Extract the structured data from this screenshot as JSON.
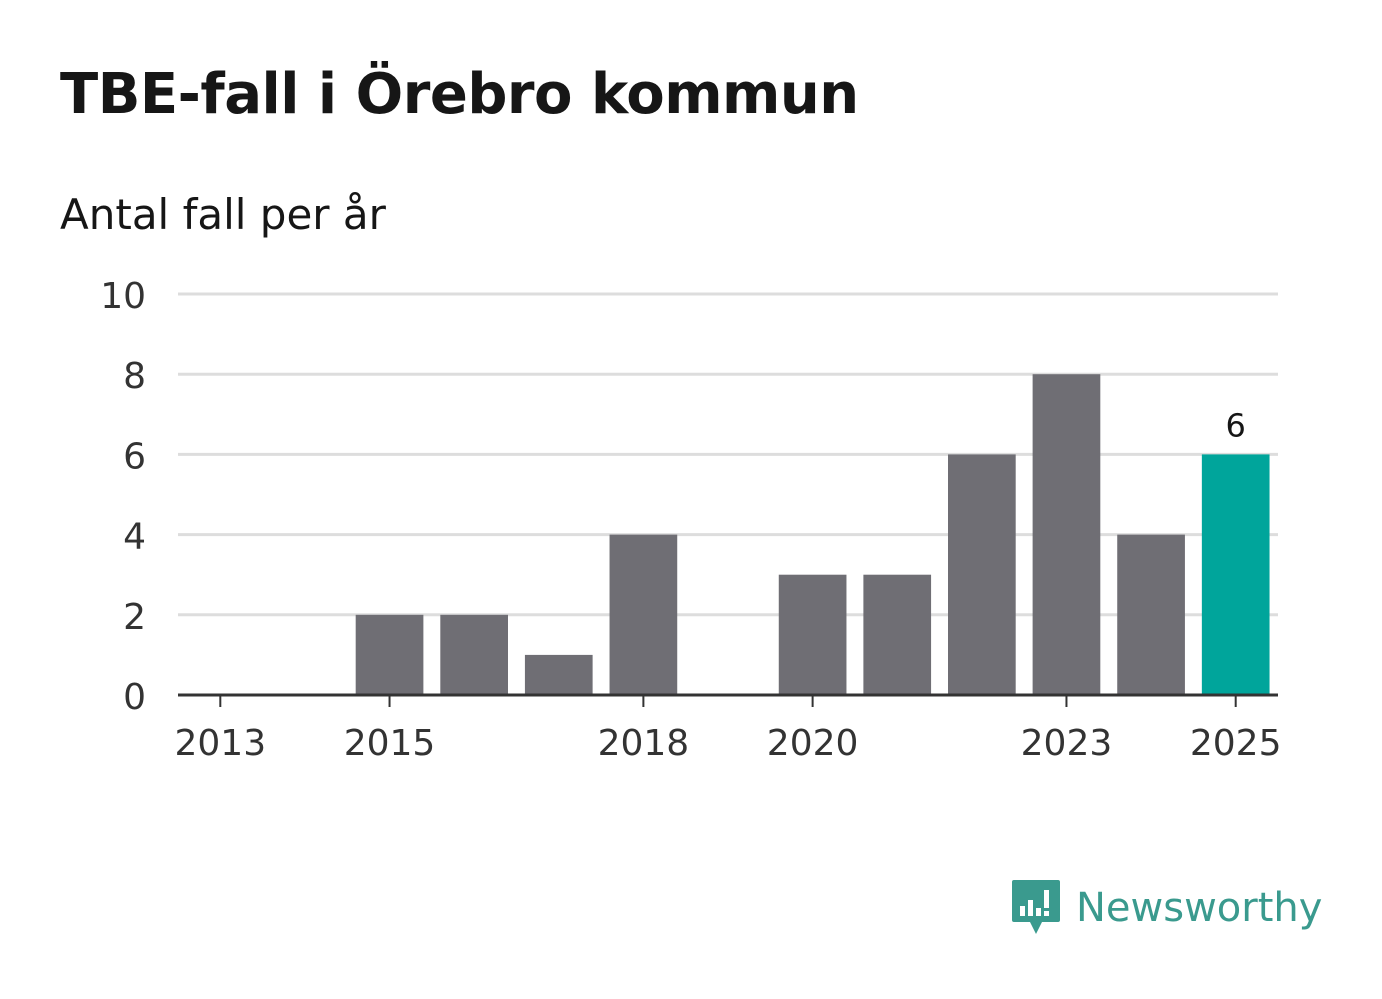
{
  "title": "TBE-fall i Örebro kommun",
  "subtitle": "Antal fall per år",
  "brand": "Newsworthy",
  "colors": {
    "bar": "#6f6e74",
    "highlight": "#00a59b",
    "grid": "#dddddd",
    "axis": "#333333",
    "text": "#333333",
    "brand": "#3a9a8e"
  },
  "chart_data": {
    "type": "bar",
    "title": "TBE-fall i Örebro kommun",
    "ylabel": "Antal fall per år",
    "xlabel": "",
    "ylim": [
      0,
      10
    ],
    "yticks": [
      0,
      2,
      4,
      6,
      8,
      10
    ],
    "categories": [
      "2013",
      "2014",
      "2015",
      "2016",
      "2017",
      "2018",
      "2019",
      "2020",
      "2021",
      "2022",
      "2023",
      "2024",
      "2025"
    ],
    "values": [
      0,
      0,
      2,
      2,
      1,
      4,
      0,
      3,
      3,
      6,
      8,
      4,
      6
    ],
    "xtick_labels": [
      "2013",
      "2015",
      "2018",
      "2020",
      "2023",
      "2025"
    ],
    "highlight": "2025",
    "data_labels": [
      {
        "category": "2025",
        "text": "6"
      }
    ],
    "grid": true
  }
}
